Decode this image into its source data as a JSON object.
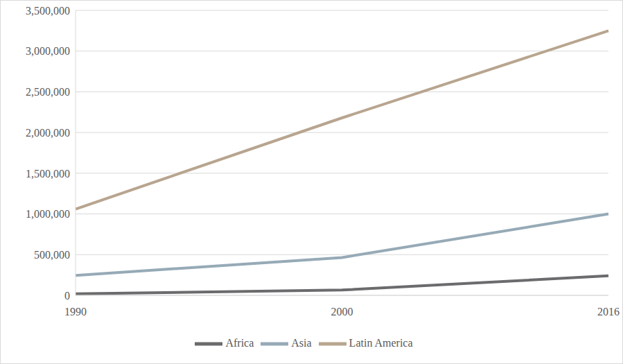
{
  "chart_data": {
    "type": "line",
    "categories": [
      "1990",
      "2000",
      "2016"
    ],
    "series": [
      {
        "name": "Africa",
        "color": "#6b6b6d",
        "values": [
          20000,
          65000,
          240000
        ]
      },
      {
        "name": "Asia",
        "color": "#96aab6",
        "values": [
          245000,
          465000,
          1000000
        ]
      },
      {
        "name": "Latin America",
        "color": "#b8a58f",
        "values": [
          1060000,
          2180000,
          3250000
        ]
      }
    ],
    "ylim": [
      0,
      3500000
    ],
    "yticks": [
      {
        "value": 0,
        "label": "0"
      },
      {
        "value": 500000,
        "label": "500,000"
      },
      {
        "value": 1000000,
        "label": "1,000,000"
      },
      {
        "value": 1500000,
        "label": "1,500,000"
      },
      {
        "value": 2000000,
        "label": "2,000,000"
      },
      {
        "value": 2500000,
        "label": "2,500,000"
      },
      {
        "value": 3000000,
        "label": "3,000,000"
      },
      {
        "value": 3500000,
        "label": "3,500,000"
      }
    ],
    "grid": true,
    "legend": "bottom"
  }
}
